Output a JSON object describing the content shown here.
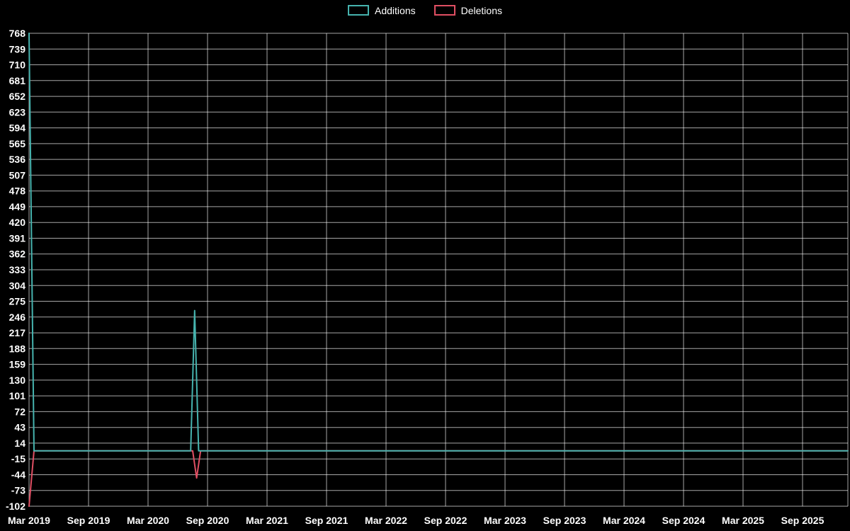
{
  "page": {
    "background": "#000000"
  },
  "legend": {
    "position": "top-center",
    "items": [
      {
        "label": "Additions",
        "color": "#46b3ae"
      },
      {
        "label": "Deletions",
        "color": "#e04f63"
      }
    ]
  },
  "chart_data": {
    "type": "line",
    "title": "",
    "xlabel": "",
    "ylabel": "",
    "background": "#000000",
    "grid": true,
    "grid_color": "#ffffff",
    "grid_opacity": 0.65,
    "legend_position": "top-center",
    "x_ticks": [
      "Mar 2019",
      "Sep 2019",
      "Mar 2020",
      "Sep 2020",
      "Mar 2021",
      "Sep 2021",
      "Mar 2022",
      "Sep 2022",
      "Mar 2023",
      "Sep 2023",
      "Mar 2024",
      "Sep 2024",
      "Mar 2025",
      "Sep 2025"
    ],
    "x_tick_interval_months": 6,
    "xlim_months": [
      0,
      82.57
    ],
    "y_ticks": [
      768,
      739,
      710,
      681,
      652,
      623,
      594,
      565,
      536,
      507,
      478,
      449,
      420,
      391,
      362,
      333,
      304,
      275,
      246,
      217,
      188,
      159,
      130,
      101,
      72,
      43,
      14,
      -15,
      -44,
      -73,
      -102
    ],
    "ylim": [
      -102,
      768
    ],
    "series": [
      {
        "name": "Deletions",
        "color": "#e04f63",
        "points": [
          [
            0,
            -102
          ],
          [
            0.5,
            0
          ],
          [
            16.5,
            0
          ],
          [
            16.9,
            -50
          ],
          [
            17.3,
            0
          ],
          [
            82.57,
            0
          ]
        ]
      },
      {
        "name": "Additions",
        "color": "#46b3ae",
        "points": [
          [
            0,
            768
          ],
          [
            0.5,
            0
          ],
          [
            16.3,
            0
          ],
          [
            16.7,
            258
          ],
          [
            17.1,
            0
          ],
          [
            82.57,
            0
          ]
        ]
      }
    ]
  }
}
